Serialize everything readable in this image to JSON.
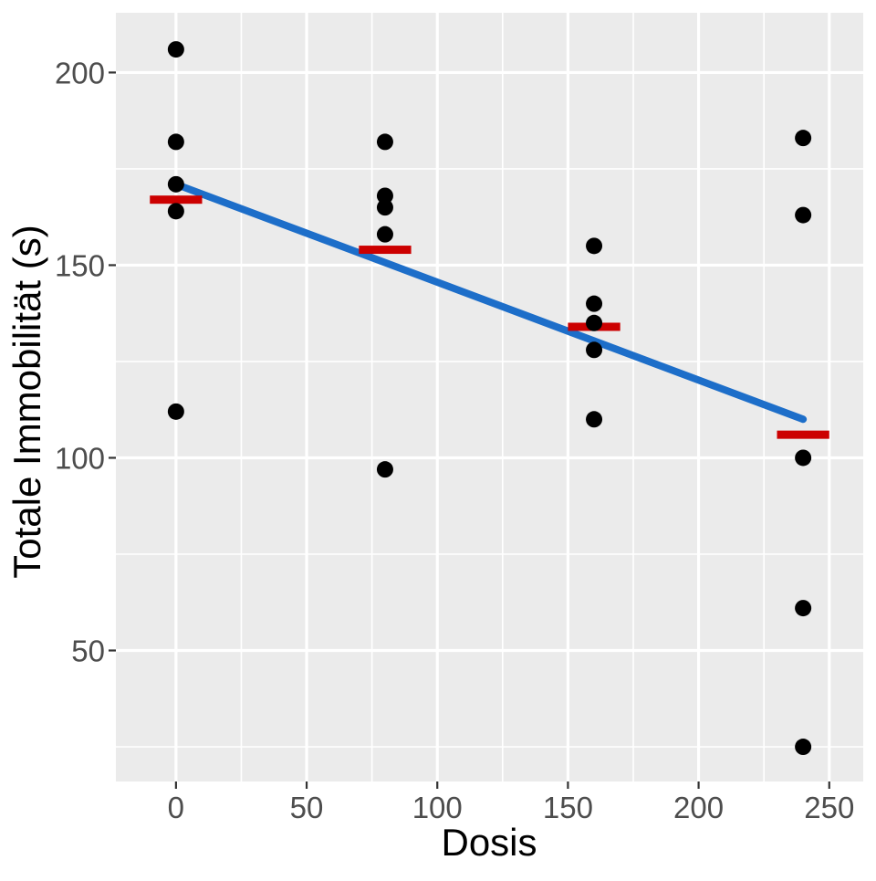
{
  "chart_data": {
    "type": "scatter",
    "title": "",
    "xlabel": "Dosis",
    "ylabel": "Totale Immobilität (s)",
    "x_ticks": [
      0,
      50,
      100,
      150,
      200,
      250
    ],
    "y_ticks": [
      50,
      100,
      150,
      200
    ],
    "x_minor_breaks": [
      25,
      75,
      125,
      175,
      225
    ],
    "y_minor_breaks": [
      25,
      75,
      125,
      175
    ],
    "xlim": [
      -23,
      263
    ],
    "ylim": [
      16,
      215.5
    ],
    "grid": true,
    "legend_position": "none",
    "groups": [
      {
        "dose": 0,
        "values": [
          206,
          182,
          171,
          164,
          112
        ],
        "mean": 167
      },
      {
        "dose": 80,
        "values": [
          182,
          168,
          165,
          158,
          97
        ],
        "mean": 154
      },
      {
        "dose": 160,
        "values": [
          155,
          140,
          135,
          128,
          110
        ],
        "mean": 134
      },
      {
        "dose": 240,
        "values": [
          183,
          163,
          100,
          61,
          25
        ],
        "mean": 106
      }
    ],
    "mean_bar_halfwidth": 10,
    "regression_line": {
      "x": [
        0,
        240
      ],
      "y": [
        171,
        110
      ]
    },
    "colors": {
      "point": "#000000",
      "mean_bar": "#CC0000",
      "trend_line": "#1D6EC9",
      "panel_background": "#EBEBEB",
      "gridline": "#FFFFFF",
      "tick_mark": "#333333",
      "tick_text": "#4D4D4D",
      "axis_title_text": "#000000"
    }
  }
}
